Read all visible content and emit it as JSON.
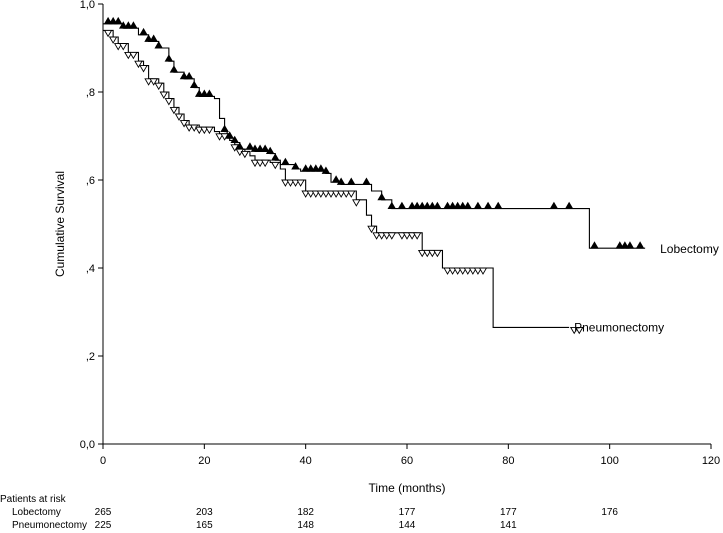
{
  "chart_data": {
    "type": "line",
    "xlabel": "Time (months)",
    "ylabel": "Cumulative Survival",
    "xlim": [
      0,
      120
    ],
    "ylim": [
      0.0,
      1.0
    ],
    "x_ticks": [
      0,
      20,
      40,
      60,
      80,
      100,
      120
    ],
    "x_tick_labels": [
      "0",
      "20",
      "40",
      "60",
      "80",
      "100",
      "120"
    ],
    "y_ticks": [
      0.0,
      0.2,
      0.4,
      0.6,
      0.8,
      1.0
    ],
    "y_tick_labels": [
      "0,0",
      ",2",
      ",4",
      ",6",
      ",8",
      "1,0"
    ],
    "grid": false,
    "series": [
      {
        "name": "Lobectomy",
        "marker": "filled-triangle",
        "steps": [
          [
            0,
            0.955
          ],
          [
            4,
            0.945
          ],
          [
            7,
            0.93
          ],
          [
            9,
            0.915
          ],
          [
            11,
            0.9
          ],
          [
            13,
            0.87
          ],
          [
            14,
            0.845
          ],
          [
            16,
            0.83
          ],
          [
            18,
            0.81
          ],
          [
            19,
            0.79
          ],
          [
            22,
            0.79
          ],
          [
            22,
            0.785
          ],
          [
            22.5,
            0.785
          ],
          [
            23,
            0.74
          ],
          [
            24,
            0.71
          ],
          [
            24.5,
            0.695
          ],
          [
            26,
            0.685
          ],
          [
            27,
            0.67
          ],
          [
            29,
            0.67
          ],
          [
            30,
            0.665
          ],
          [
            33,
            0.66
          ],
          [
            34,
            0.645
          ],
          [
            35,
            0.635
          ],
          [
            38,
            0.625
          ],
          [
            39,
            0.62
          ],
          [
            44,
            0.615
          ],
          [
            45,
            0.595
          ],
          [
            47,
            0.59
          ],
          [
            53,
            0.575
          ],
          [
            55,
            0.555
          ],
          [
            57,
            0.535
          ],
          [
            96,
            0.535
          ],
          [
            96,
            0.445
          ],
          [
            107,
            0.445
          ]
        ],
        "censor_x": [
          1,
          2,
          3,
          4,
          5,
          6,
          8,
          9,
          10,
          11,
          13,
          14,
          16,
          17,
          18,
          19,
          20,
          21,
          24,
          25,
          26,
          27,
          29,
          30,
          31,
          32,
          33,
          34,
          36,
          38,
          40,
          41,
          42,
          43,
          44,
          46,
          47,
          49,
          52,
          55,
          57,
          59,
          61,
          62,
          63,
          64,
          65,
          66,
          68,
          69,
          70,
          71,
          72,
          74,
          76,
          78,
          89,
          92,
          97,
          102,
          103,
          104,
          106
        ]
      },
      {
        "name": "Pneumonectomy",
        "marker": "open-triangle",
        "steps": [
          [
            0,
            0.94
          ],
          [
            2,
            0.925
          ],
          [
            3,
            0.91
          ],
          [
            5,
            0.89
          ],
          [
            7,
            0.87
          ],
          [
            8,
            0.86
          ],
          [
            9,
            0.83
          ],
          [
            11,
            0.82
          ],
          [
            12,
            0.8
          ],
          [
            13,
            0.785
          ],
          [
            14,
            0.765
          ],
          [
            15,
            0.75
          ],
          [
            16,
            0.735
          ],
          [
            17,
            0.725
          ],
          [
            19,
            0.72
          ],
          [
            21,
            0.72
          ],
          [
            22,
            0.71
          ],
          [
            23,
            0.705
          ],
          [
            25,
            0.69
          ],
          [
            26,
            0.68
          ],
          [
            27,
            0.67
          ],
          [
            28,
            0.665
          ],
          [
            29,
            0.655
          ],
          [
            30,
            0.645
          ],
          [
            33,
            0.64
          ],
          [
            35,
            0.625
          ],
          [
            36,
            0.6
          ],
          [
            40,
            0.6
          ],
          [
            40,
            0.575
          ],
          [
            50,
            0.575
          ],
          [
            50,
            0.555
          ],
          [
            51,
            0.555
          ],
          [
            52,
            0.52
          ],
          [
            53,
            0.495
          ],
          [
            54,
            0.48
          ],
          [
            63,
            0.48
          ],
          [
            63,
            0.44
          ],
          [
            67,
            0.44
          ],
          [
            67,
            0.4
          ],
          [
            77,
            0.4
          ],
          [
            77,
            0.265
          ],
          [
            92,
            0.265
          ]
        ],
        "censor_x": [
          1,
          2,
          3,
          4,
          5,
          6,
          7,
          8,
          9,
          10,
          11,
          12,
          13,
          14,
          15,
          16,
          17,
          18,
          19,
          20,
          21,
          23,
          24,
          26,
          27,
          28,
          30,
          31,
          32,
          34,
          36,
          37,
          38,
          39,
          40,
          41,
          42,
          43,
          44,
          45,
          46,
          47,
          48,
          49,
          50,
          53,
          54,
          55,
          56,
          57,
          59,
          60,
          61,
          62,
          63,
          64,
          65,
          66,
          68,
          69,
          70,
          71,
          72,
          73,
          74,
          75,
          93,
          94
        ]
      }
    ],
    "annotations": {
      "risk_header": "Patients at risk",
      "risk_rows": [
        {
          "label": "Lobectomy",
          "values": [
            "265",
            "203",
            "182",
            "177",
            "177",
            "176"
          ]
        },
        {
          "label": "Pneumonectomy",
          "values": [
            "225",
            "165",
            "148",
            "144",
            "141"
          ]
        }
      ]
    }
  }
}
